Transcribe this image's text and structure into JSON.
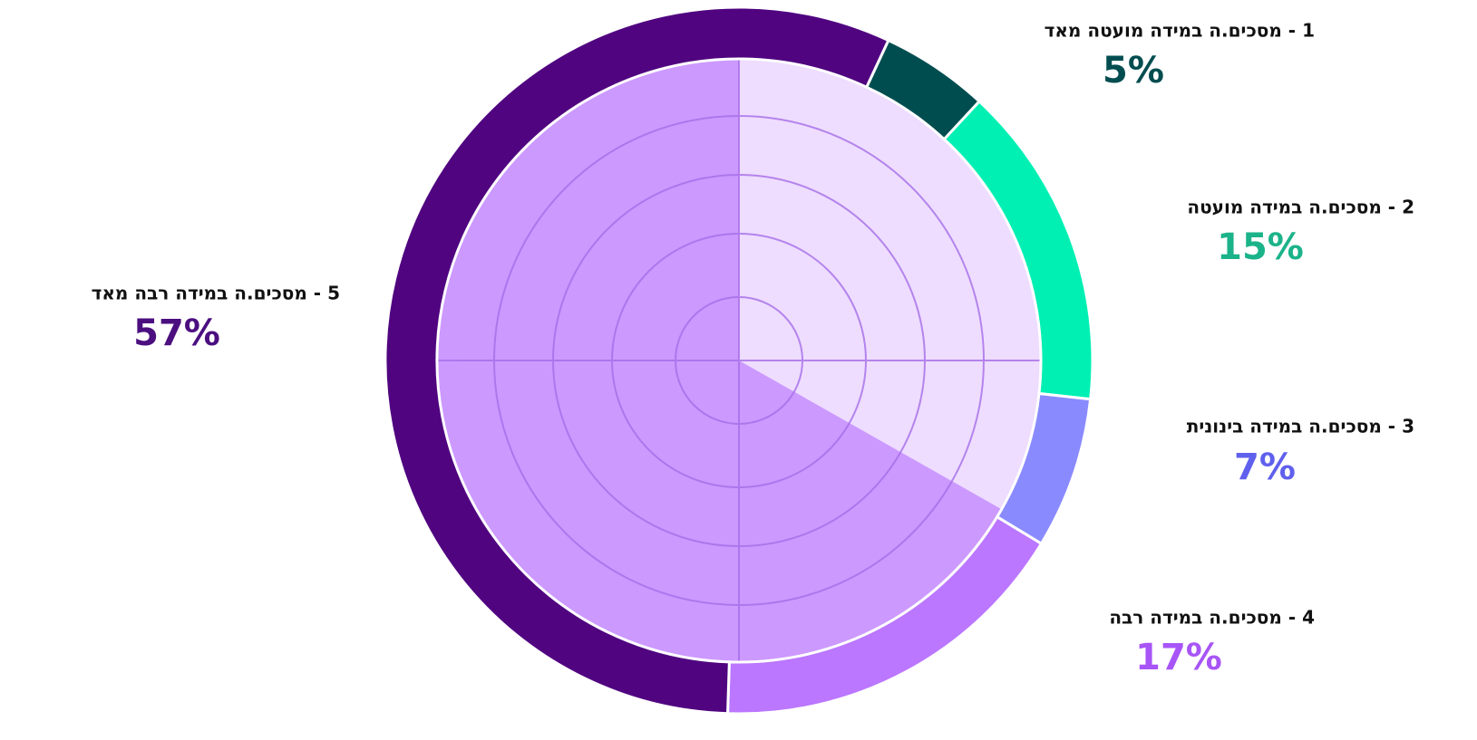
{
  "chart_data": {
    "type": "pie",
    "donut": true,
    "categories": [
      "1 - מסכים.ה במידה מועטה מאד",
      "2 - מסכים.ה במידה מועטה",
      "3 - מסכים.ה במידה בינונית",
      "4 - מסכים.ה במידה רבה",
      "5 - מסכים.ה במידה רבה מאד"
    ],
    "values": [
      5,
      15,
      7,
      17,
      57
    ],
    "value_labels": [
      "5%",
      "15%",
      "7%",
      "17%",
      "57%"
    ],
    "colors": [
      "#004d50",
      "#00f0b4",
      "#8a8aff",
      "#bb77ff",
      "#500480"
    ],
    "label_colors": [
      "#004d50",
      "#1bb389",
      "#6060ee",
      "#a855f7",
      "#4b0f80"
    ]
  }
}
